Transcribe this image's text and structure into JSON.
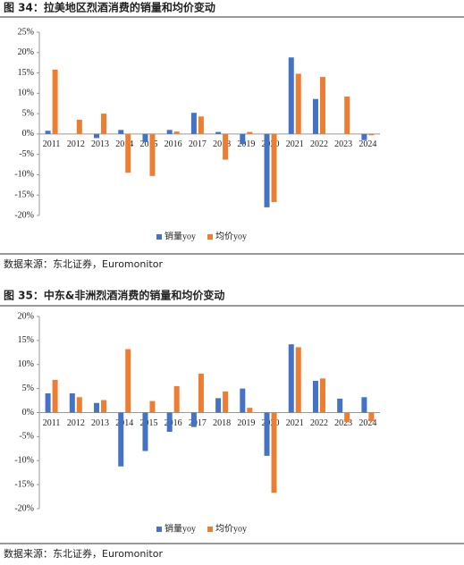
{
  "chart_data": [
    {
      "type": "bar",
      "title": "图 34：拉美地区烈酒消费的销量和均价变动",
      "source": "数据来源：东北证券，Euromonitor",
      "categories": [
        "2011",
        "2012",
        "2013",
        "2014",
        "2015",
        "2016",
        "2017",
        "2018",
        "2019",
        "2020",
        "2021",
        "2022",
        "2023",
        "2024"
      ],
      "series": [
        {
          "name": "销量yoy",
          "color": "#4472c4",
          "values": [
            0.8,
            0,
            -1,
            1,
            -2,
            1,
            5.2,
            0.5,
            -2.5,
            -18,
            18.8,
            8.6,
            0,
            -1.5
          ]
        },
        {
          "name": "均价yoy",
          "color": "#ed7d31",
          "values": [
            15.8,
            3.5,
            5,
            -9.5,
            -10.3,
            0.6,
            4.3,
            -6.3,
            0.5,
            -16.7,
            14.8,
            14,
            9.2,
            -0.3
          ]
        }
      ],
      "ylim": [
        -20,
        25
      ],
      "yticks": [
        {
          "value": -20,
          "label": "-20%"
        },
        {
          "value": -15,
          "label": "-15%"
        },
        {
          "value": -10,
          "label": "-10%"
        },
        {
          "value": -5,
          "label": "-5%"
        },
        {
          "value": 0,
          "label": "0%"
        },
        {
          "value": 5,
          "label": "5%"
        },
        {
          "value": 10,
          "label": "10%"
        },
        {
          "value": 15,
          "label": "15%"
        },
        {
          "value": 20,
          "label": "20%"
        },
        {
          "value": 25,
          "label": "25%"
        }
      ]
    },
    {
      "type": "bar",
      "title": "图 35：中东&非洲烈酒消费的销量和均价变动",
      "source": "数据来源：东北证券，Euromonitor",
      "categories": [
        "2011",
        "2012",
        "2013",
        "2014",
        "2015",
        "2016",
        "2017",
        "2018",
        "2019",
        "2020",
        "2021",
        "2022",
        "2023",
        "2024"
      ],
      "series": [
        {
          "name": "销量yoy",
          "color": "#4472c4",
          "values": [
            4,
            4,
            2,
            -11.2,
            -8,
            -4,
            -3,
            3,
            5,
            -9,
            14.2,
            6.6,
            2.9,
            3.2
          ]
        },
        {
          "name": "均价yoy",
          "color": "#ed7d31",
          "values": [
            6.8,
            3.2,
            2.6,
            13.2,
            2.4,
            5.5,
            8.1,
            4.4,
            1,
            -16.7,
            13.6,
            7.1,
            -2,
            -1.8
          ]
        }
      ],
      "ylim": [
        -20,
        20
      ],
      "yticks": [
        {
          "value": -20,
          "label": "-20%"
        },
        {
          "value": -15,
          "label": "-15%"
        },
        {
          "value": -10,
          "label": "-10%"
        },
        {
          "value": -5,
          "label": "-5%"
        },
        {
          "value": 0,
          "label": "0%"
        },
        {
          "value": 5,
          "label": "5%"
        },
        {
          "value": 10,
          "label": "10%"
        },
        {
          "value": 15,
          "label": "15%"
        },
        {
          "value": 20,
          "label": "20%"
        }
      ]
    }
  ]
}
